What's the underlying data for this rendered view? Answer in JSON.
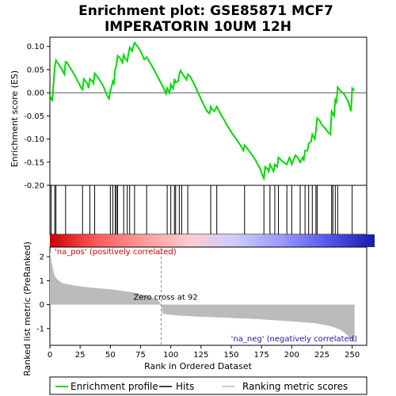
{
  "chart_data": {
    "type": "line",
    "title_line1": "Enrichment plot: GSE85871 MCF7",
    "title_line2": "IMPERATORIN 10UM 12H",
    "xlabel": "Rank in Ordered Dataset",
    "ylabel_top": "Enrichment score (ES)",
    "ylabel_bottom": "Ranked list metric (PreRanked)",
    "xlim": [
      0,
      262
    ],
    "xticks": [
      0,
      25,
      50,
      75,
      100,
      125,
      150,
      175,
      200,
      225,
      250
    ],
    "es_ylim": [
      -0.2,
      0.12
    ],
    "es_yticks": [
      0.1,
      0.05,
      0.0,
      -0.05,
      -0.1,
      -0.15,
      -0.2
    ],
    "es_ytick_labels": [
      "0.10",
      "0.05",
      "0.00",
      "-0.05",
      "-0.10",
      "-0.15",
      "-0.20"
    ],
    "metric_ylim": [
      -1.7,
      2.4
    ],
    "metric_yticks": [
      2,
      1,
      0,
      -1
    ],
    "hits": [
      1,
      4,
      5,
      13,
      27,
      33,
      37,
      50,
      52,
      54,
      55,
      56,
      61,
      64,
      66,
      70,
      80,
      97,
      100,
      103,
      104,
      107,
      109,
      114,
      133,
      138,
      161,
      177,
      182,
      186,
      189,
      196,
      200,
      207,
      211,
      214,
      217,
      220,
      221,
      233,
      234,
      236,
      238,
      250
    ],
    "es_curve": {
      "x": [
        0,
        1,
        2,
        3,
        4,
        5,
        6,
        10,
        12,
        13,
        14,
        16,
        20,
        24,
        26,
        27,
        28,
        31,
        32,
        33,
        35,
        36,
        37,
        40,
        44,
        48,
        49,
        50,
        51,
        52,
        53,
        54,
        55,
        56,
        58,
        60,
        61,
        62,
        64,
        65,
        66,
        68,
        69,
        70,
        73,
        75,
        78,
        80,
        82,
        85,
        88,
        92,
        95,
        96,
        97,
        98,
        99,
        100,
        101,
        102,
        103,
        104,
        106,
        107,
        108,
        109,
        112,
        113,
        114,
        116,
        118,
        120,
        122,
        124,
        126,
        128,
        130,
        132,
        133,
        134,
        136,
        138,
        140,
        142,
        144,
        146,
        150,
        154,
        158,
        160,
        161,
        163,
        166,
        170,
        174,
        176,
        177,
        178,
        180,
        181,
        182,
        184,
        185,
        186,
        188,
        189,
        191,
        193,
        196,
        198,
        199,
        200,
        203,
        205,
        207,
        209,
        210,
        211,
        213,
        214,
        216,
        217,
        218,
        219,
        220,
        221,
        223,
        225,
        227,
        230,
        232,
        233,
        234,
        235,
        236,
        237,
        238,
        240,
        243,
        246,
        248,
        249,
        250,
        252
      ],
      "y": [
        -0.005,
        -0.012,
        -0.018,
        0.02,
        0.055,
        0.07,
        0.066,
        0.05,
        0.04,
        0.067,
        0.066,
        0.057,
        0.04,
        0.02,
        0.01,
        0.007,
        0.03,
        0.02,
        0.01,
        0.03,
        0.025,
        0.02,
        0.042,
        0.032,
        0.015,
        -0.01,
        -0.013,
        0.005,
        0.013,
        0.025,
        0.02,
        0.05,
        0.06,
        0.08,
        0.075,
        0.065,
        0.082,
        0.075,
        0.068,
        0.085,
        0.098,
        0.09,
        0.1,
        0.108,
        0.098,
        0.09,
        0.072,
        0.077,
        0.068,
        0.055,
        0.04,
        0.02,
        0.005,
        -0.002,
        0.01,
        0.005,
        0.0,
        0.018,
        0.012,
        0.009,
        0.03,
        0.022,
        0.025,
        0.04,
        0.048,
        0.043,
        0.032,
        0.028,
        0.04,
        0.035,
        0.025,
        0.015,
        0.003,
        -0.008,
        -0.02,
        -0.03,
        -0.04,
        -0.045,
        -0.03,
        -0.035,
        -0.04,
        -0.03,
        -0.04,
        -0.05,
        -0.058,
        -0.068,
        -0.085,
        -0.1,
        -0.115,
        -0.125,
        -0.113,
        -0.12,
        -0.13,
        -0.145,
        -0.165,
        -0.18,
        -0.185,
        -0.16,
        -0.165,
        -0.17,
        -0.155,
        -0.165,
        -0.17,
        -0.155,
        -0.16,
        -0.14,
        -0.145,
        -0.15,
        -0.155,
        -0.14,
        -0.145,
        -0.155,
        -0.135,
        -0.14,
        -0.15,
        -0.14,
        -0.145,
        -0.125,
        -0.125,
        -0.11,
        -0.105,
        -0.09,
        -0.095,
        -0.1,
        -0.082,
        -0.055,
        -0.06,
        -0.07,
        -0.075,
        -0.085,
        -0.09,
        -0.04,
        -0.045,
        -0.05,
        -0.015,
        -0.02,
        0.012,
        0.005,
        -0.002,
        -0.015,
        -0.03,
        -0.04,
        0.01,
        0.005
      ]
    },
    "metric_curve": {
      "x": [
        0,
        2,
        4,
        6,
        10,
        20,
        30,
        40,
        50,
        60,
        70,
        80,
        85,
        90,
        91,
        92,
        93,
        100,
        110,
        130,
        150,
        170,
        190,
        200,
        210,
        220,
        230,
        235,
        240,
        243,
        246,
        248,
        250,
        252
      ],
      "y": [
        2.2,
        1.6,
        1.2,
        1.05,
        0.9,
        0.8,
        0.73,
        0.68,
        0.64,
        0.57,
        0.5,
        0.38,
        0.28,
        0.16,
        0.08,
        0.02,
        -0.38,
        -0.43,
        -0.47,
        -0.52,
        -0.56,
        -0.6,
        -0.67,
        -0.7,
        -0.74,
        -0.78,
        -0.88,
        -0.95,
        -1.05,
        -1.15,
        -1.28,
        -1.4,
        -1.5,
        -1.55
      ]
    },
    "zero_cross_rank": 92,
    "zero_cross_label": "Zero cross at 92",
    "pos_label": "'na_pos' (positively correlated)",
    "neg_label": "'na_neg' (negatively correlated)",
    "colors": {
      "es_line": "#00dd00",
      "pos_label": "#cc0000",
      "neg_label": "#1a1aaa",
      "metric_fill": "#bbbbbb",
      "zero_line": "#888888",
      "bar_gradient": [
        "#cc0000",
        "#ff5a5a",
        "#ff9999",
        "#ffcccc",
        "#ccccff",
        "#9999ff",
        "#5555ee",
        "#1a1aaa"
      ]
    },
    "legend": {
      "es_label": "Enrichment profile",
      "hits_label": "Hits",
      "metric_label": "Ranking metric scores"
    }
  }
}
